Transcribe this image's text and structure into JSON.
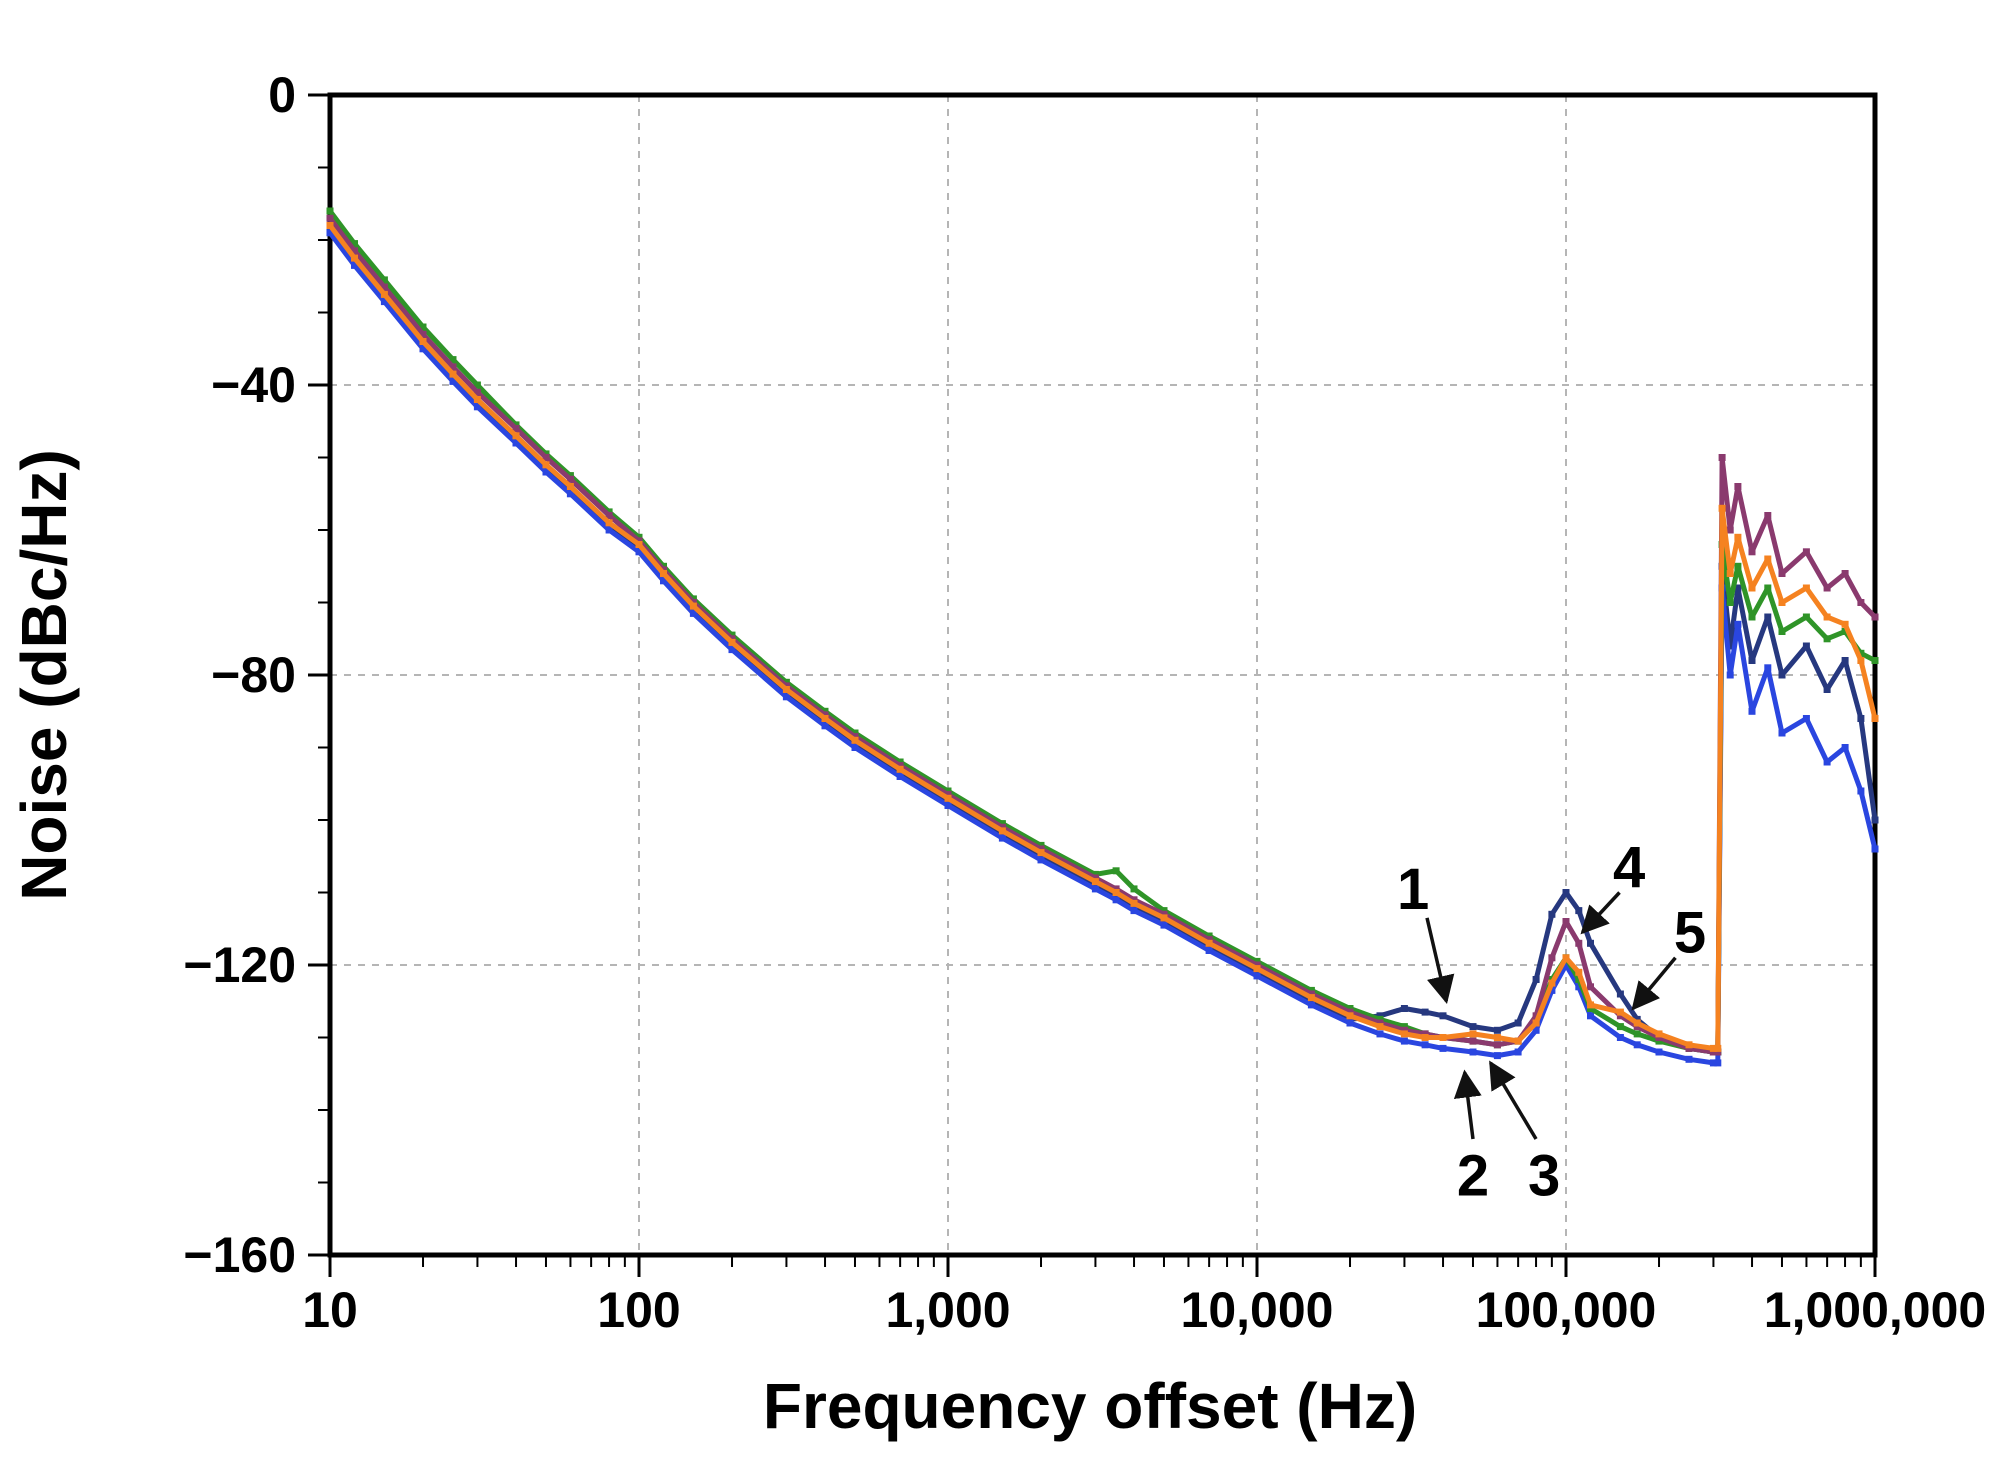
{
  "chart_data": {
    "type": "line",
    "title": "",
    "xlabel": "Frequency offset (Hz)",
    "ylabel": "Noise (dBc/Hz)",
    "x_scale": "log",
    "x_range": [
      10,
      1000000
    ],
    "y_range": [
      -160,
      0
    ],
    "grid": {
      "x_major": [
        100,
        1000,
        10000,
        100000
      ],
      "y_major": [
        -40,
        -80,
        -120
      ],
      "color": "#b5b5b5",
      "style": "dashed"
    },
    "x_ticks": [
      {
        "value": 10,
        "label": "10"
      },
      {
        "value": 100,
        "label": "100"
      },
      {
        "value": 1000,
        "label": "1,000"
      },
      {
        "value": 10000,
        "label": "10,000"
      },
      {
        "value": 100000,
        "label": "100,000"
      },
      {
        "value": 1000000,
        "label": "1,000,000"
      }
    ],
    "y_ticks": [
      {
        "value": 0,
        "label": "0"
      },
      {
        "value": -40,
        "label": "−40"
      },
      {
        "value": -80,
        "label": "−80"
      },
      {
        "value": -120,
        "label": "−120"
      },
      {
        "value": -160,
        "label": "−160"
      }
    ],
    "x": [
      10,
      12,
      15,
      20,
      25,
      30,
      40,
      50,
      60,
      80,
      100,
      120,
      150,
      200,
      300,
      400,
      500,
      700,
      1000,
      1500,
      2000,
      3000,
      3500,
      4000,
      5000,
      7000,
      10000,
      15000,
      20000,
      25000,
      30000,
      35000,
      40000,
      50000,
      60000,
      70000,
      80000,
      90000,
      100000,
      110000,
      120000,
      150000,
      170000,
      200000,
      250000,
      300000,
      310000,
      320000,
      340000,
      360000,
      400000,
      450000,
      500000,
      600000,
      700000,
      800000,
      900000,
      1000000
    ],
    "series": [
      {
        "name": "1",
        "color": "#26387f",
        "values": [
          -18.5,
          -23,
          -28,
          -34.5,
          -39,
          -42.5,
          -47.5,
          -51.5,
          -54.5,
          -59.5,
          -62.5,
          -66.5,
          -71,
          -76,
          -82.5,
          -86.5,
          -89.5,
          -93.5,
          -97.5,
          -102,
          -105,
          -109,
          -110.5,
          -112,
          -114,
          -117.5,
          -121,
          -125,
          -127.5,
          -127,
          -126,
          -126.5,
          -127,
          -128.5,
          -129,
          -128,
          -122,
          -113,
          -110,
          -112.5,
          -117,
          -124,
          -127.5,
          -130,
          -131.5,
          -132,
          -132,
          -65,
          -76,
          -68,
          -78,
          -72,
          -80,
          -76,
          -82,
          -78,
          -86,
          -100
        ]
      },
      {
        "name": "2",
        "color": "#2a46e0",
        "values": [
          -19,
          -23.5,
          -28.5,
          -35,
          -39.5,
          -43,
          -48,
          -52,
          -55,
          -60,
          -63,
          -67,
          -71.5,
          -76.5,
          -83,
          -87,
          -90,
          -94,
          -98,
          -102.5,
          -105.5,
          -109.5,
          -111,
          -112.5,
          -114.5,
          -118,
          -121.5,
          -125.5,
          -128,
          -129.5,
          -130.5,
          -131,
          -131.5,
          -132,
          -132.5,
          -132,
          -129,
          -123.5,
          -120,
          -123,
          -127,
          -130,
          -131,
          -132,
          -133,
          -133.5,
          -133.5,
          -68,
          -80,
          -73,
          -85,
          -79,
          -88,
          -86,
          -92,
          -90,
          -96,
          -104
        ]
      },
      {
        "name": "3",
        "color": "#2f9428",
        "values": [
          -16,
          -20.5,
          -25.5,
          -32,
          -36.5,
          -40,
          -45.5,
          -49.5,
          -52.5,
          -57.5,
          -61,
          -65,
          -69.5,
          -74.5,
          -81,
          -85,
          -88,
          -92,
          -96,
          -100.5,
          -103.5,
          -107.5,
          -107,
          -109.5,
          -112.5,
          -116,
          -119.5,
          -123.5,
          -126,
          -127.5,
          -128.5,
          -129.5,
          -130,
          -130.5,
          -131,
          -130.5,
          -127.5,
          -122,
          -119,
          -122,
          -126,
          -128.5,
          -129.5,
          -130.5,
          -131.5,
          -132,
          -132,
          -62,
          -70,
          -65,
          -72,
          -68,
          -74,
          -72,
          -75,
          -74,
          -77,
          -78
        ]
      },
      {
        "name": "4",
        "color": "#8a3a6e",
        "values": [
          -17,
          -21.5,
          -26.5,
          -33,
          -37.5,
          -41,
          -46,
          -50,
          -53,
          -58,
          -61.5,
          -65.5,
          -70,
          -75,
          -81.5,
          -85.5,
          -88.5,
          -92.5,
          -96.5,
          -101,
          -104,
          -108,
          -109.5,
          -111,
          -113,
          -116.5,
          -120,
          -124,
          -126.5,
          -128,
          -129,
          -129.5,
          -130,
          -130.5,
          -131,
          -130.5,
          -127,
          -119,
          -114,
          -117,
          -123,
          -127,
          -128.5,
          -130,
          -131.5,
          -132,
          -132,
          -50,
          -60,
          -54,
          -63,
          -58,
          -66,
          -63,
          -68,
          -66,
          -70,
          -72
        ]
      },
      {
        "name": "5",
        "color": "#f58220",
        "values": [
          -18,
          -22.5,
          -27.5,
          -34,
          -38.5,
          -42,
          -47,
          -51,
          -54,
          -59,
          -62,
          -66,
          -70.5,
          -75.5,
          -82,
          -86,
          -89,
          -93,
          -97,
          -101.5,
          -104.5,
          -108.5,
          -110,
          -111.5,
          -113.5,
          -117,
          -120.5,
          -124.5,
          -127,
          -128.5,
          -129.5,
          -130,
          -130,
          -129.5,
          -130,
          -130.5,
          -128,
          -122.5,
          -119,
          -121,
          -125.5,
          -126.5,
          -128,
          -129.5,
          -131,
          -131.5,
          -131.5,
          -57,
          -66,
          -61,
          -68,
          -64,
          -70,
          -68,
          -72,
          -73,
          -78,
          -86
        ]
      }
    ],
    "annotations": [
      {
        "label": "1",
        "color": "#26387f",
        "text_at": [
          32000,
          -109.5
        ],
        "arrow_from": [
          35500,
          -113.5
        ],
        "arrow_to": [
          41000,
          -125
        ]
      },
      {
        "label": "2",
        "color": "#2a46e0",
        "text_at": [
          50000,
          -149
        ],
        "arrow_from": [
          50000,
          -144
        ],
        "arrow_to": [
          47000,
          -134.8
        ]
      },
      {
        "label": "3",
        "color": "#2f9428",
        "text_at": [
          85000,
          -149
        ],
        "arrow_from": [
          80000,
          -144
        ],
        "arrow_to": [
          57000,
          -133.5
        ]
      },
      {
        "label": "4",
        "color": "#8a3a6e",
        "text_at": [
          160000,
          -106.5
        ],
        "arrow_from": [
          149000,
          -110
        ],
        "arrow_to": [
          113000,
          -115.5
        ]
      },
      {
        "label": "5",
        "color": "#f58220",
        "text_at": [
          252000,
          -115.5
        ],
        "arrow_from": [
          226000,
          -119
        ],
        "arrow_to": [
          165000,
          -126
        ]
      }
    ]
  }
}
